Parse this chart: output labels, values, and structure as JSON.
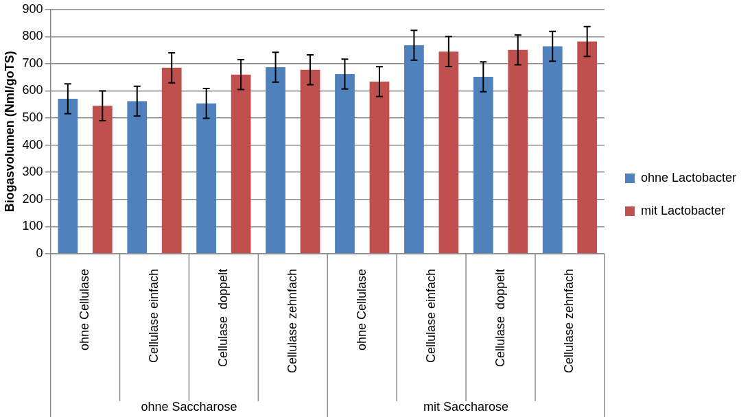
{
  "chart_data": {
    "type": "bar",
    "ylabel": "Biogasvolumen (Nml/goTS)",
    "categories": [
      "ohne Cellulase",
      "Cellulase einfach",
      "Cellulase  doppelt",
      "Cellulase zehnfach",
      "ohne Cellulase",
      "Cellulase einfach",
      "Cellulase  doppelt",
      "Cellulase zehnfach"
    ],
    "series": [
      {
        "name": "ohne Lactobacter",
        "color": "#4f81bd",
        "values": [
          571,
          562,
          554,
          687,
          662,
          768,
          652,
          764
        ],
        "errors": [
          55,
          55,
          55,
          55,
          55,
          55,
          55,
          55
        ]
      },
      {
        "name": "mit Lactobacter",
        "color": "#c0504d",
        "values": [
          545,
          685,
          660,
          678,
          634,
          745,
          751,
          782
        ],
        "errors": [
          55,
          55,
          55,
          55,
          55,
          55,
          55,
          55
        ]
      }
    ],
    "annotations": [
      "ohne Saccharose",
      "mit Saccharose"
    ],
    "ylim": [
      0,
      900
    ],
    "yticks": [
      0,
      100,
      200,
      300,
      400,
      500,
      600,
      700,
      800,
      900
    ],
    "grid": "y",
    "legend": "right"
  }
}
